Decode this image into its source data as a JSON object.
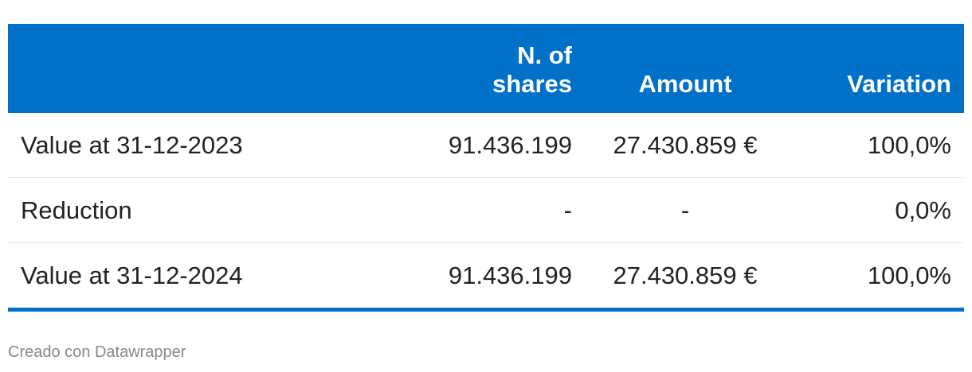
{
  "table": {
    "header": [
      "",
      "N. of\nshares",
      "Amount",
      "Variation"
    ],
    "rows": [
      [
        "Value at 31-12-2023",
        "91.436.199",
        "27.430.859 €",
        "100,0%"
      ],
      [
        "Reduction",
        "-",
        "-",
        "0,0%"
      ],
      [
        "Value at 31-12-2024",
        "91.436.199",
        "27.430.859 €",
        "100,0%"
      ]
    ]
  },
  "footer": "Creado con Datawrapper"
}
